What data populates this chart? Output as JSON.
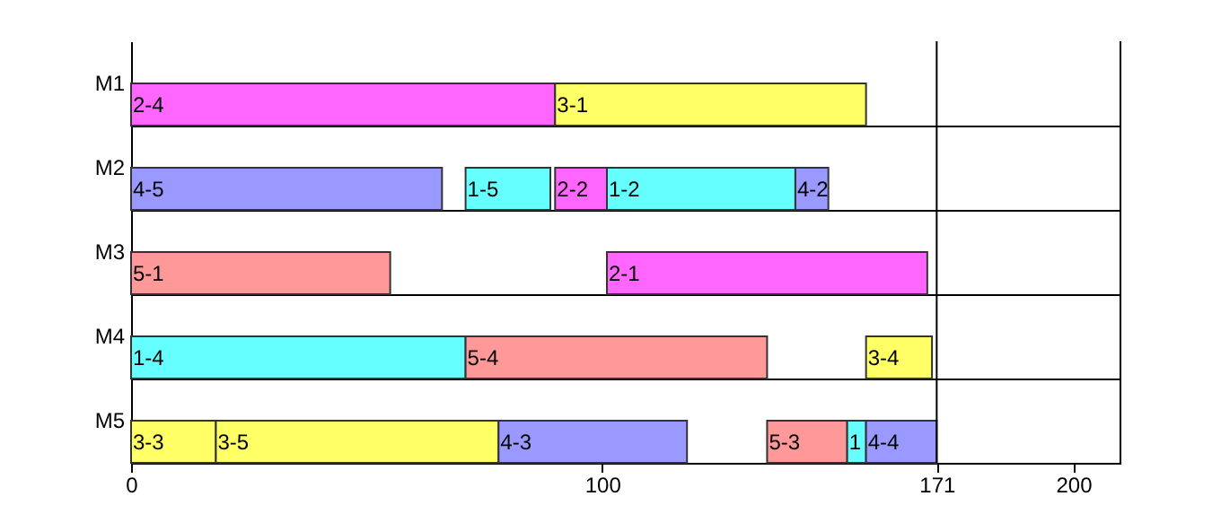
{
  "chart_data": {
    "type": "bar",
    "orientation": "horizontal",
    "categories": [
      "M1",
      "M2",
      "M3",
      "M4",
      "M5"
    ],
    "series": [
      {
        "values": [
          90,
          66,
          55,
          71,
          18
        ],
        "base": [
          0,
          0,
          0,
          0,
          0
        ],
        "colors": [
          "#ff66ff",
          "#9999ff",
          "#ff9999",
          "#66ffff",
          "#ffff66"
        ]
      },
      {
        "values": [
          66,
          18,
          68,
          64,
          60
        ],
        "base": [
          90,
          71,
          101,
          71,
          18
        ],
        "colors": [
          "#ffff66",
          "#66ffff",
          "#ff66ff",
          "#ff9999",
          "#ffff66"
        ]
      },
      {
        "values": [
          null,
          11,
          null,
          14,
          40
        ],
        "base": [
          null,
          90,
          null,
          156,
          78
        ],
        "colors": [
          null,
          "#ff66ff",
          null,
          "#ffff66",
          "#9999ff"
        ]
      },
      {
        "values": [
          null,
          40,
          null,
          null,
          17
        ],
        "base": [
          null,
          101,
          null,
          null,
          135
        ],
        "colors": [
          null,
          "#66ffff",
          null,
          null,
          "#ff9999"
        ]
      },
      {
        "values": [
          null,
          7,
          null,
          null,
          4
        ],
        "base": [
          null,
          141,
          null,
          null,
          152
        ],
        "colors": [
          null,
          "#9999ff",
          null,
          null,
          "#66ffff"
        ]
      },
      {
        "values": [
          null,
          null,
          null,
          null,
          15
        ],
        "base": [
          null,
          null,
          null,
          null,
          156
        ],
        "colors": [
          null,
          null,
          null,
          null,
          "#9999ff"
        ]
      }
    ],
    "annotations": [
      {
        "text": "2-4",
        "x": 0,
        "y": "M1"
      },
      {
        "text": "3-1",
        "x": 90,
        "y": "M1"
      },
      {
        "text": "4-5",
        "x": 0,
        "y": "M2"
      },
      {
        "text": "1-5",
        "x": 71,
        "y": "M2"
      },
      {
        "text": "2-2",
        "x": 90,
        "y": "M2"
      },
      {
        "text": "1-2",
        "x": 101,
        "y": "M2"
      },
      {
        "text": "4-2",
        "x": 141,
        "y": "M2"
      },
      {
        "text": "5-1",
        "x": 0,
        "y": "M3"
      },
      {
        "text": "2-1",
        "x": 101,
        "y": "M3"
      },
      {
        "text": "1-4",
        "x": 0,
        "y": "M4"
      },
      {
        "text": "5-4",
        "x": 71,
        "y": "M4"
      },
      {
        "text": "3-4",
        "x": 156,
        "y": "M4"
      },
      {
        "text": "3-3",
        "x": 0,
        "y": "M5"
      },
      {
        "text": "3-5",
        "x": 18,
        "y": "M5"
      },
      {
        "text": "4-3",
        "x": 78,
        "y": "M5"
      },
      {
        "text": "5-3",
        "x": 135,
        "y": "M5"
      },
      {
        "text": "1",
        "x": 152,
        "y": "M5"
      },
      {
        "text": "4-4",
        "x": 156,
        "y": "M5"
      }
    ],
    "xlim": [
      0,
      210
    ],
    "xticks": [
      0,
      100,
      171,
      200
    ],
    "ref_lines": [
      {
        "axis": "x",
        "value": 171,
        "color": "#000000"
      }
    ],
    "grid": "y"
  }
}
